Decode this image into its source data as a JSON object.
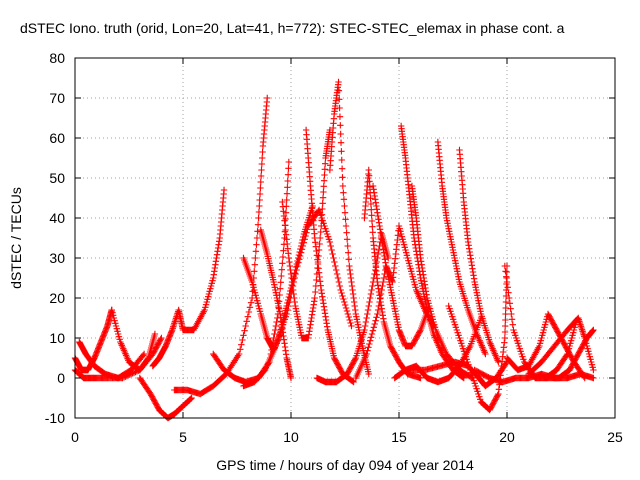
{
  "chart_data": {
    "type": "scatter",
    "title": "dSTEC Iono. truth (orid, Lon=20, Lat=41, h=772): STEC-STEC_elemax in phase cont. a",
    "xlabel": "GPS time / hours of day 094 of year 2014",
    "ylabel": "dSTEC  / TECUs",
    "xlim": [
      0,
      25
    ],
    "ylim": [
      -10,
      80
    ],
    "xticks": [
      0,
      5,
      10,
      15,
      20,
      25
    ],
    "yticks": [
      -10,
      0,
      10,
      20,
      30,
      40,
      50,
      60,
      70,
      80
    ],
    "grid": true,
    "marker": "+",
    "color": "#ff0000",
    "series": [
      {
        "x": [
          0.0,
          0.3,
          0.6,
          0.9,
          1.2,
          1.5,
          1.7
        ],
        "y": [
          5,
          2,
          2,
          5,
          9,
          13,
          17
        ]
      },
      {
        "x": [
          1.7,
          2.1,
          2.5,
          3.0,
          3.4,
          3.7
        ],
        "y": [
          17,
          9,
          4,
          2,
          5,
          11
        ]
      },
      {
        "x": [
          0.0,
          0.4,
          0.9,
          1.5,
          2.2,
          3.0,
          3.6,
          4.0
        ],
        "y": [
          2,
          0,
          0,
          0,
          0,
          2,
          6,
          10
        ]
      },
      {
        "x": [
          0.2,
          0.5,
          0.9,
          1.4,
          2.0,
          2.6,
          3.2
        ],
        "y": [
          9,
          6,
          3,
          1,
          0,
          2,
          6
        ]
      },
      {
        "x": [
          3.0,
          3.5,
          3.9,
          4.3,
          4.6,
          5.0,
          5.4
        ],
        "y": [
          0,
          -4,
          -8,
          -10,
          -9,
          -7,
          -5
        ]
      },
      {
        "x": [
          3.6,
          3.9,
          4.2,
          4.5,
          4.8,
          5.0,
          5.5,
          6.0,
          6.4,
          6.7,
          6.9
        ],
        "y": [
          3,
          5,
          8,
          12,
          17,
          12,
          12,
          17,
          25,
          35,
          47
        ]
      },
      {
        "x": [
          4.6,
          5.2,
          5.8,
          6.4,
          7.0,
          7.6,
          8.2,
          8.5,
          8.7,
          8.9
        ],
        "y": [
          -3,
          -3,
          -4,
          -2,
          1,
          6,
          20,
          40,
          58,
          70
        ]
      },
      {
        "x": [
          6.4,
          6.9,
          7.4,
          7.9,
          8.5,
          9.0,
          9.4,
          9.7,
          9.9
        ],
        "y": [
          6,
          2,
          0,
          -1,
          0,
          4,
          16,
          35,
          54
        ]
      },
      {
        "x": [
          7.8,
          8.2,
          8.6,
          8.9,
          9.2,
          9.5,
          9.8,
          10.2,
          10.6,
          11.0
        ],
        "y": [
          30,
          24,
          16,
          10,
          7,
          11,
          18,
          27,
          36,
          43
        ]
      },
      {
        "x": [
          7.8,
          8.3,
          8.8,
          9.3,
          9.8,
          10.3,
          10.8,
          11.3,
          11.8,
          12.3,
          12.8
        ],
        "y": [
          -2,
          -1,
          2,
          8,
          16,
          28,
          38,
          42,
          34,
          22,
          13
        ]
      },
      {
        "x": [
          8.6,
          8.9,
          9.2,
          9.5,
          9.8,
          10.0
        ],
        "y": [
          37,
          31,
          24,
          16,
          5,
          0
        ]
      },
      {
        "x": [
          9.6,
          9.9,
          10.2,
          10.5,
          10.8,
          11.1,
          11.4,
          11.6,
          11.8
        ],
        "y": [
          44,
          30,
          18,
          10,
          10,
          20,
          38,
          55,
          62
        ]
      },
      {
        "x": [
          10.7,
          10.9,
          11.1,
          11.4,
          11.7,
          12.0,
          12.4,
          12.9
        ],
        "y": [
          62,
          48,
          35,
          22,
          12,
          5,
          1,
          -1
        ]
      },
      {
        "x": [
          11.8,
          12.0,
          12.2,
          12.4,
          12.7,
          13.0,
          13.3,
          13.6
        ],
        "y": [
          52,
          66,
          74,
          48,
          28,
          16,
          8,
          1
        ]
      },
      {
        "x": [
          11.2,
          11.6,
          12.1,
          12.6,
          13.0,
          13.4,
          13.8,
          14.2,
          14.5
        ],
        "y": [
          0,
          -1,
          -1,
          1,
          5,
          12,
          24,
          36,
          30
        ]
      },
      {
        "x": [
          13.4,
          13.6,
          13.8,
          14.0,
          14.3,
          14.6,
          15.0,
          15.4,
          16.0
        ],
        "y": [
          40,
          52,
          35,
          24,
          14,
          8,
          4,
          1,
          0
        ]
      },
      {
        "x": [
          13.8,
          14.1,
          14.4,
          14.7,
          15.0,
          15.3,
          15.6,
          16.0,
          16.4
        ],
        "y": [
          48,
          38,
          28,
          20,
          12,
          8,
          8,
          12,
          18
        ]
      },
      {
        "x": [
          13.0,
          13.5,
          14.0,
          14.4,
          14.7,
          15.0,
          15.4,
          15.8,
          16.2,
          16.6
        ],
        "y": [
          0,
          6,
          16,
          28,
          24,
          38,
          30,
          22,
          17,
          13
        ]
      },
      {
        "x": [
          15.1,
          15.3,
          15.5,
          15.7,
          16.0,
          16.3,
          16.6,
          17.0,
          17.5,
          18.0
        ],
        "y": [
          63,
          55,
          45,
          35,
          25,
          17,
          11,
          6,
          2,
          0
        ]
      },
      {
        "x": [
          15.6,
          15.8,
          16.0,
          16.3,
          16.7,
          17.2,
          17.8,
          18.4
        ],
        "y": [
          48,
          40,
          30,
          20,
          12,
          6,
          2,
          0
        ]
      },
      {
        "x": [
          14.8,
          15.3,
          15.8,
          16.3,
          16.8,
          17.3,
          17.8,
          18.3,
          18.8
        ],
        "y": [
          0,
          2,
          3,
          0,
          -1,
          0,
          3,
          8,
          15
        ]
      },
      {
        "x": [
          16.8,
          17.0,
          17.2,
          17.5,
          17.8,
          18.2,
          18.6,
          19.0
        ],
        "y": [
          59,
          48,
          40,
          32,
          24,
          17,
          11,
          6
        ]
      },
      {
        "x": [
          17.8,
          18.0,
          18.2,
          18.5,
          18.8,
          19.2,
          19.6
        ],
        "y": [
          57,
          44,
          34,
          24,
          16,
          9,
          4
        ]
      },
      {
        "x": [
          15.5,
          16.2,
          16.9,
          17.6,
          18.2,
          18.7,
          19.0,
          19.5,
          20.0
        ],
        "y": [
          2,
          2,
          3,
          4,
          3,
          0,
          -2,
          0,
          4
        ]
      },
      {
        "x": [
          17.3,
          17.8,
          18.3,
          18.8,
          19.2,
          19.6,
          19.9,
          20.0
        ],
        "y": [
          18,
          10,
          2,
          -6,
          -8,
          -4,
          10,
          28
        ]
      },
      {
        "x": [
          19.9,
          20.3,
          20.8,
          21.3,
          21.8,
          22.3,
          22.8,
          23.2
        ],
        "y": [
          28,
          12,
          4,
          0,
          0,
          2,
          6,
          14
        ]
      },
      {
        "x": [
          20.0,
          20.5,
          21.0,
          21.5,
          21.9,
          22.3,
          22.7,
          23.1,
          23.6
        ],
        "y": [
          5,
          2,
          3,
          8,
          16,
          12,
          8,
          4,
          0
        ]
      },
      {
        "x": [
          21.0,
          21.6,
          22.2,
          22.8,
          23.3,
          23.6,
          24.0
        ],
        "y": [
          1,
          4,
          8,
          12,
          15,
          10,
          2
        ]
      },
      {
        "x": [
          21.8,
          22.4,
          22.9,
          23.3,
          23.7,
          24.0
        ],
        "y": [
          0,
          0,
          2,
          6,
          10,
          12
        ]
      },
      {
        "x": [
          18.5,
          19.2,
          19.8,
          20.4,
          21.0,
          21.6,
          22.2,
          22.8,
          23.4,
          24.0
        ],
        "y": [
          2,
          0,
          -1,
          0,
          0,
          1,
          0,
          0,
          1,
          0
        ]
      }
    ]
  }
}
